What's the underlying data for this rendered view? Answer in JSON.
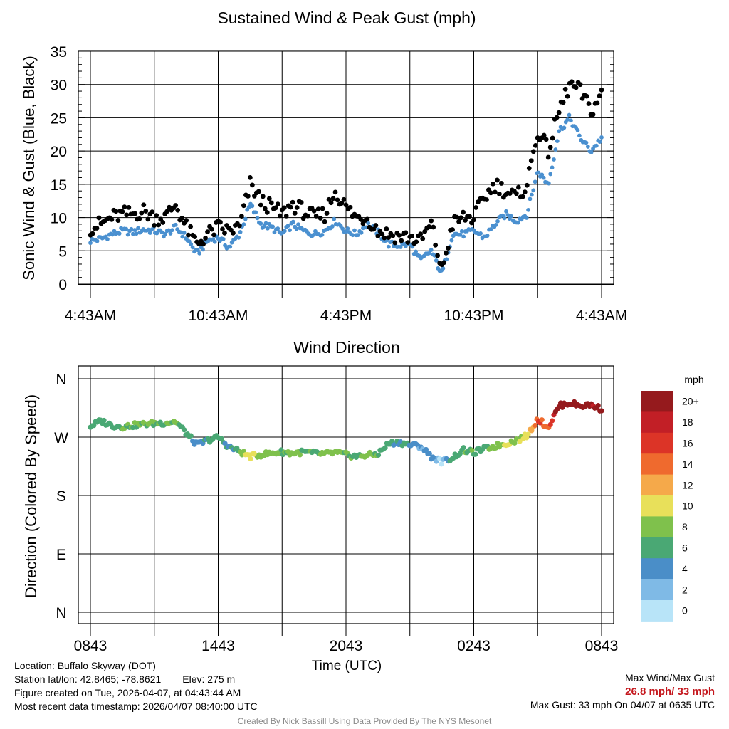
{
  "chart_data": [
    {
      "type": "scatter",
      "title": "Sustained Wind & Peak Gust (mph)",
      "xlabel": "",
      "ylabel": "Sonic Wind & Gust (Blue, Black)",
      "xlim": [
        0,
        24
      ],
      "ylim": [
        0,
        35
      ],
      "yticks": [
        "0",
        "5",
        "10",
        "15",
        "20",
        "25",
        "30",
        "35"
      ],
      "xtick_labels": [
        "4:43AM",
        "10:43AM",
        "4:43PM",
        "10:43PM",
        "4:43AM"
      ],
      "grid": true,
      "series": [
        {
          "name": "Sustained Wind",
          "color": "#4a90d0",
          "x": [
            0,
            0.5,
            1,
            1.5,
            2,
            2.5,
            3,
            3.5,
            4,
            4.5,
            5,
            5.5,
            6,
            6.5,
            7,
            7.5,
            8,
            8.5,
            9,
            9.5,
            10,
            10.5,
            11,
            11.5,
            12,
            12.5,
            13,
            13.5,
            14,
            14.5,
            15,
            15.5,
            16,
            16.5,
            17,
            17.5,
            18,
            18.5,
            19,
            19.5,
            20,
            20.5,
            21,
            21.5,
            22,
            22.5,
            23,
            23.5,
            24
          ],
          "y": [
            6.5,
            6.8,
            7.5,
            8,
            7.8,
            8.2,
            8,
            7.5,
            8.5,
            7,
            4.5,
            6.5,
            7,
            5.5,
            7.5,
            12,
            9,
            8.5,
            7.5,
            9,
            8,
            7.5,
            8,
            9.5,
            8,
            7.5,
            9,
            7.8,
            6,
            5.8,
            6,
            3.5,
            5,
            1.5,
            7.5,
            7.5,
            8,
            7,
            9,
            10.5,
            9.5,
            10.5,
            17,
            15,
            23,
            25,
            22,
            20,
            22
          ]
        },
        {
          "name": "Peak Gust",
          "color": "#000000",
          "x": [
            0,
            0.5,
            1,
            1.5,
            2,
            2.5,
            3,
            3.5,
            4,
            4.5,
            5,
            5.5,
            6,
            6.5,
            7,
            7.5,
            8,
            8.5,
            9,
            9.5,
            10,
            10.5,
            11,
            11.5,
            12,
            12.5,
            13,
            13.5,
            14,
            14.5,
            15,
            15.5,
            16,
            16.5,
            17,
            17.5,
            18,
            18.5,
            19,
            19.5,
            20,
            20.5,
            21,
            21.5,
            22,
            22.5,
            23,
            23.5,
            24
          ],
          "y": [
            8.5,
            9,
            10,
            10.5,
            10.5,
            11,
            10,
            10,
            12,
            8.5,
            6,
            7.5,
            8.5,
            8,
            8.5,
            15,
            12.5,
            11.5,
            10.5,
            12,
            11,
            10,
            10.5,
            14,
            11.5,
            10,
            10,
            8,
            7.5,
            7.2,
            7,
            6.5,
            9,
            2,
            9,
            10,
            10,
            13,
            15,
            14,
            13,
            15,
            23,
            20,
            26,
            30,
            29,
            26,
            28.5
          ]
        }
      ]
    },
    {
      "type": "scatter",
      "title": "Wind Direction",
      "xlabel": "Time (UTC)",
      "ylabel": "Direction (Colored By Speed)",
      "xlim": [
        0,
        24
      ],
      "ylim": [
        0,
        360
      ],
      "yticks": [
        "N",
        "E",
        "S",
        "W",
        "N"
      ],
      "xtick_labels": [
        "0843",
        "1443",
        "2043",
        "0243",
        "0843"
      ],
      "grid": true,
      "series": [
        {
          "name": "Direction",
          "x": [
            0,
            0.5,
            1,
            1.5,
            2,
            2.5,
            3,
            3.5,
            4,
            4.5,
            5,
            5.5,
            6,
            6.5,
            7,
            7.5,
            8,
            8.5,
            9,
            9.5,
            10,
            10.5,
            11,
            11.5,
            12,
            12.5,
            13,
            13.5,
            14,
            14.5,
            15,
            15.5,
            16,
            16.5,
            17,
            17.5,
            18,
            18.5,
            19,
            19.5,
            20,
            20.5,
            21,
            21.5,
            22,
            22.5,
            23,
            23.5,
            24
          ],
          "y": [
            287,
            295,
            288,
            286,
            288,
            290,
            291,
            292,
            294,
            276,
            258,
            265,
            270,
            255,
            248,
            240,
            243,
            245,
            247,
            245,
            247,
            245,
            244,
            246,
            243,
            240,
            242,
            244,
            260,
            262,
            258,
            256,
            240,
            232,
            238,
            250,
            246,
            252,
            256,
            260,
            265,
            272,
            298,
            285,
            318,
            323,
            318,
            320,
            313
          ],
          "speed": [
            6.5,
            6.8,
            7.5,
            8,
            7.8,
            8.2,
            8,
            7.5,
            8.5,
            7,
            4.5,
            6.5,
            7,
            5.5,
            7.5,
            12,
            9,
            8.5,
            7.5,
            9,
            8,
            7.5,
            8,
            9.5,
            8,
            7.5,
            9,
            7.8,
            6,
            5.8,
            6,
            3.5,
            5,
            1.5,
            7.5,
            7.5,
            8,
            7,
            9,
            10.5,
            9.5,
            10.5,
            17,
            15,
            23,
            25,
            22,
            20,
            22
          ]
        }
      ],
      "colorbar": {
        "title": "mph",
        "labels": [
          "0",
          "2",
          "4",
          "6",
          "8",
          "10",
          "12",
          "14",
          "16",
          "18",
          "20+"
        ],
        "colors": [
          "#b8e4f8",
          "#7fbae6",
          "#4a8ec8",
          "#4aa874",
          "#7fc14c",
          "#e8e05a",
          "#f5a94a",
          "#ef6a2e",
          "#dc3427",
          "#c21f26",
          "#951a1d"
        ]
      }
    }
  ],
  "info": {
    "location": "Location: Buffalo Skyway (DOT)",
    "latlon": "Station lat/lon: 42.8465; -78.8621",
    "elev": "Elev: 275 m",
    "created": "Figure created on Tue, 2026-04-07, at 04:43:44 AM",
    "recent": "Most recent data timestamp: 2026/04/07 08:40:00 UTC",
    "max_title": "Max Wind/Max Gust",
    "max_values": "26.8 mph/ 33 mph",
    "max_gust": "Max Gust: 33 mph On 04/07 at 0635 UTC",
    "credit": "Created By Nick Bassill Using Data Provided By The NYS Mesonet"
  }
}
